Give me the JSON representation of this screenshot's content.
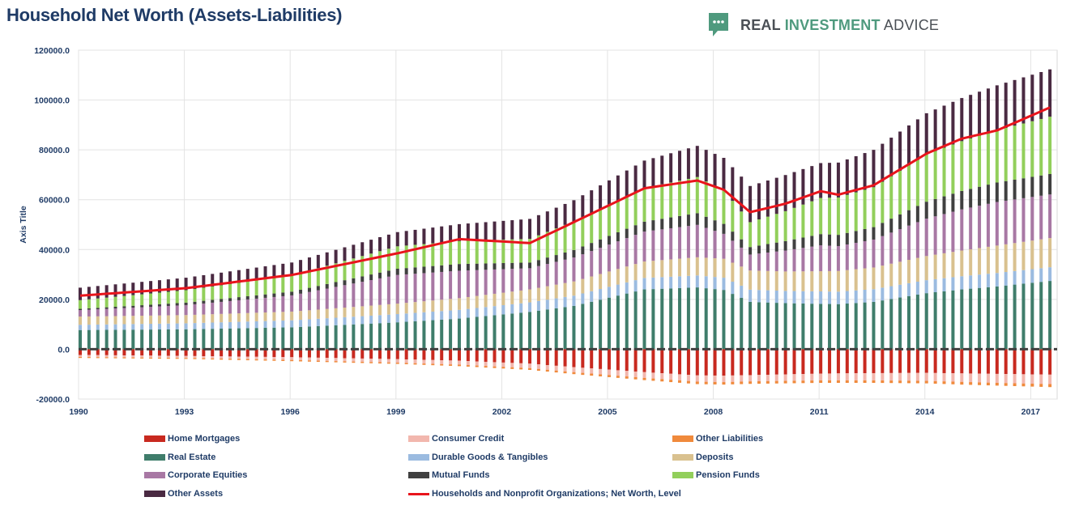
{
  "header": {
    "title": "Household Net Worth (Assets-Liabilities)",
    "brand": {
      "part1": "REAL ",
      "part2": "INVESTMENT",
      "part3": " ADVICE"
    }
  },
  "colors": {
    "home_mortgages": "#c8291f",
    "consumer_credit": "#f2b7ae",
    "other_liabilities": "#f08a3c",
    "real_estate": "#3f7d6b",
    "durable_goods": "#9bbbe0",
    "deposits": "#d9c18f",
    "corporate_equities": "#a878a4",
    "mutual_funds": "#404040",
    "pension_funds": "#92cf5b",
    "other_assets": "#4a2a42",
    "net_worth": "#e8141c",
    "brand_green": "#4f9a7e"
  },
  "chart_data": {
    "type": "bar",
    "stacked": true,
    "title": "",
    "ylabel": "Axis Title",
    "xlabel": "",
    "ylim": [
      -20000,
      120000
    ],
    "y_ticks": [
      "120000.0",
      "100000.0",
      "80000.0",
      "60000.0",
      "40000.0",
      "20000.0",
      "0.0",
      "-20000.0"
    ],
    "x_ticks": [
      "1990",
      "1993",
      "1996",
      "1999",
      "2002",
      "2005",
      "2008",
      "2011",
      "2014",
      "2017"
    ],
    "x_ticks_values": [
      1990,
      1993,
      1996,
      1999,
      2002,
      2005,
      2008,
      2011,
      2014,
      2017
    ],
    "frequency": "quarterly",
    "legend_position": "bottom",
    "grid": true,
    "keyframes": {
      "year": [
        1990,
        1993,
        1996,
        1999,
        2000.75,
        2002.75,
        2004,
        2006,
        2007.5,
        2008.25,
        2009.0,
        2010.0,
        2011.0,
        2011.5,
        2012.5,
        2014.0,
        2015.0,
        2016.0,
        2017.5
      ],
      "home_mortgages": [
        -2300,
        -2700,
        -3200,
        -4000,
        -4600,
        -5800,
        -7200,
        -9200,
        -10500,
        -10600,
        -10400,
        -10100,
        -9800,
        -9700,
        -9600,
        -9500,
        -9700,
        -9900,
        -10200
      ],
      "consumer_credit": [
        -800,
        -800,
        -1100,
        -1400,
        -1600,
        -1800,
        -2000,
        -2300,
        -2500,
        -2600,
        -2500,
        -2600,
        -2700,
        -2800,
        -2900,
        -3200,
        -3400,
        -3600,
        -3800
      ],
      "other_liabilities": [
        -400,
        -400,
        -500,
        -500,
        -600,
        -700,
        -800,
        -900,
        -1000,
        -1000,
        -1000,
        -1000,
        -1000,
        -1000,
        -1000,
        -1000,
        -1100,
        -1100,
        -1200
      ],
      "real_estate": [
        7700,
        8000,
        8800,
        10800,
        12300,
        15000,
        17400,
        24000,
        24800,
        23800,
        19000,
        18500,
        18200,
        18100,
        19000,
        22500,
        24000,
        25200,
        27400
      ],
      "durable_goods": [
        2100,
        2400,
        2800,
        3300,
        3500,
        3800,
        4100,
        4600,
        4800,
        4900,
        4900,
        4900,
        5000,
        5000,
        5100,
        5200,
        5300,
        5400,
        5500
      ],
      "deposits": [
        3300,
        3300,
        3500,
        4200,
        4700,
        5200,
        5700,
        6600,
        7300,
        7600,
        7700,
        7800,
        8100,
        8300,
        8700,
        9700,
        10300,
        11000,
        11700
      ],
      "corporate_equities": [
        2600,
        4000,
        6500,
        11500,
        11000,
        8500,
        9600,
        12000,
        13000,
        10000,
        6400,
        8400,
        10400,
        10000,
        11200,
        15000,
        16500,
        17500,
        17500
      ],
      "mutual_funds": [
        500,
        1000,
        1500,
        2500,
        2700,
        2300,
        3000,
        4000,
        4700,
        4000,
        3000,
        3800,
        4500,
        4500,
        5000,
        6800,
        7400,
        7800,
        8200
      ],
      "pension_funds": [
        3500,
        5000,
        6500,
        9000,
        9200,
        9500,
        11500,
        13500,
        14500,
        13500,
        10000,
        12000,
        14500,
        15000,
        16000,
        19000,
        20000,
        21000,
        23000
      ],
      "other_assets": [
        5000,
        5000,
        5200,
        5700,
        6800,
        8000,
        8500,
        11000,
        12500,
        13000,
        14500,
        14500,
        14000,
        14000,
        15000,
        16500,
        17300,
        18000,
        19000
      ],
      "net_worth": [
        21500,
        24500,
        29800,
        38500,
        44200,
        42600,
        51000,
        64600,
        67700,
        64000,
        55000,
        58400,
        63400,
        62000,
        65800,
        78500,
        84500,
        87800,
        97000
      ]
    },
    "series": [
      {
        "key": "home_mortgages",
        "name": "Home Mortgages",
        "kind": "bar"
      },
      {
        "key": "consumer_credit",
        "name": "Consumer Credit",
        "kind": "bar"
      },
      {
        "key": "other_liabilities",
        "name": "Other Liabilities",
        "kind": "bar"
      },
      {
        "key": "real_estate",
        "name": "Real Estate",
        "kind": "bar"
      },
      {
        "key": "durable_goods",
        "name": "Durable Goods & Tangibles",
        "kind": "bar"
      },
      {
        "key": "deposits",
        "name": "Deposits",
        "kind": "bar"
      },
      {
        "key": "corporate_equities",
        "name": "Corporate Equities",
        "kind": "bar"
      },
      {
        "key": "mutual_funds",
        "name": "Mutual Funds",
        "kind": "bar"
      },
      {
        "key": "pension_funds",
        "name": "Pension Funds",
        "kind": "bar"
      },
      {
        "key": "other_assets",
        "name": "Other Assets",
        "kind": "bar"
      },
      {
        "key": "net_worth",
        "name": "Households and Nonprofit Organizations; Net Worth, Level",
        "kind": "line"
      }
    ]
  }
}
